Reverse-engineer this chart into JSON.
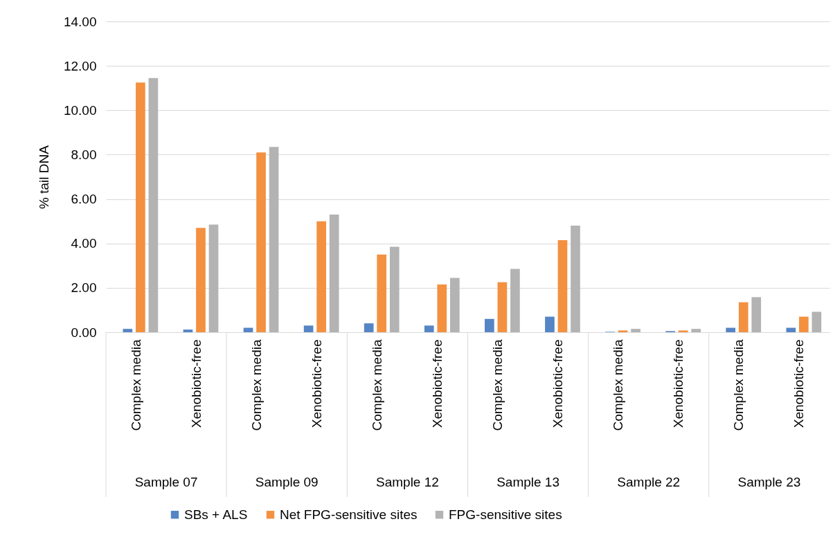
{
  "chart_data": {
    "type": "bar",
    "ylabel": "% tail DNA",
    "categories": [
      "Complex media",
      "Xenobiotic-free",
      "Complex media",
      "Xenobiotic-free",
      "Complex media",
      "Xenobiotic-free",
      "Complex media",
      "Xenobiotic-free",
      "Complex media",
      "Xenobiotic-free",
      "Complex media",
      "Xenobiotic-free"
    ],
    "annotations": [
      "Sample 07",
      "Sample 09",
      "Sample 12",
      "Sample 13",
      "Sample 22",
      "Sample 23"
    ],
    "series": [
      {
        "name": "SBs + ALS",
        "color": "#5585c5",
        "values": [
          0.15,
          0.12,
          0.2,
          0.3,
          0.4,
          0.3,
          0.6,
          0.7,
          0.02,
          0.05,
          0.2,
          0.2
        ]
      },
      {
        "name": "Net FPG-sensitive sites",
        "color": "#f39140",
        "values": [
          11.25,
          4.7,
          8.1,
          5.0,
          3.5,
          2.15,
          2.25,
          4.15,
          0.08,
          0.08,
          1.35,
          0.7
        ]
      },
      {
        "name": "FPG-sensitive sites",
        "color": "#b3b3b3",
        "values": [
          11.45,
          4.85,
          8.35,
          5.3,
          3.85,
          2.45,
          2.85,
          4.8,
          0.15,
          0.15,
          1.58,
          0.92
        ]
      }
    ],
    "ylim": [
      0,
      14
    ],
    "yticks": [
      {
        "value": 0,
        "label": "0.00"
      },
      {
        "value": 2,
        "label": "2.00"
      },
      {
        "value": 4,
        "label": "4.00"
      },
      {
        "value": 6,
        "label": "6.00"
      },
      {
        "value": 8,
        "label": "8.00"
      },
      {
        "value": 10,
        "label": "10.00"
      },
      {
        "value": 12,
        "label": "12.00"
      },
      {
        "value": 14,
        "label": "14.00"
      }
    ],
    "grid": "y",
    "legend": "bottom"
  }
}
